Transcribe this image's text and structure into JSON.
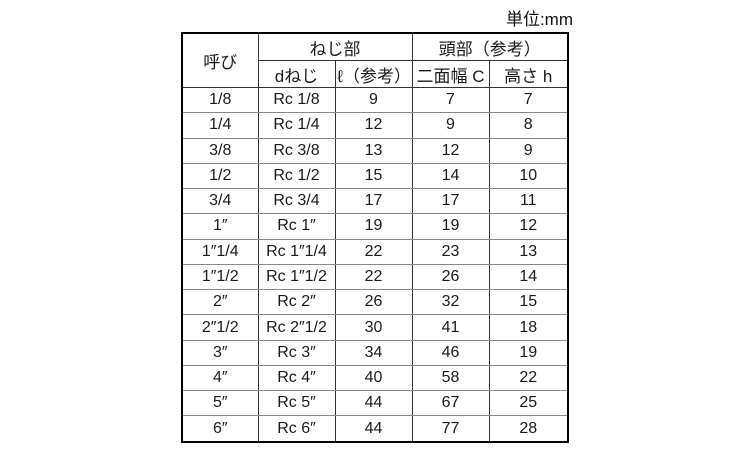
{
  "unit_label": "単位:mm",
  "table": {
    "header": {
      "col_nominal": "呼び",
      "group_thread": "ねじ部",
      "group_head": "頭部（参考）",
      "sub_d_thread": "dねじ",
      "sub_length_ref": "ℓ（参考）",
      "sub_width_across_flats": "二面幅 C",
      "sub_height": "高さ h"
    },
    "rows": [
      [
        "1/8",
        "Rc 1/8",
        "9",
        "7",
        "7"
      ],
      [
        "1/4",
        "Rc 1/4",
        "12",
        "9",
        "8"
      ],
      [
        "3/8",
        "Rc 3/8",
        "13",
        "12",
        "9"
      ],
      [
        "1/2",
        "Rc 1/2",
        "15",
        "14",
        "10"
      ],
      [
        "3/4",
        "Rc 3/4",
        "17",
        "17",
        "11"
      ],
      [
        "1″",
        "Rc 1″",
        "19",
        "19",
        "12"
      ],
      [
        "1″1/4",
        "Rc 1″1/4",
        "22",
        "23",
        "13"
      ],
      [
        "1″1/2",
        "Rc 1″1/2",
        "22",
        "26",
        "14"
      ],
      [
        "2″",
        "Rc 2″",
        "26",
        "32",
        "15"
      ],
      [
        "2″1/2",
        "Rc 2″1/2",
        "30",
        "41",
        "18"
      ],
      [
        "3″",
        "Rc 3″",
        "34",
        "46",
        "19"
      ],
      [
        "4″",
        "Rc 4″",
        "40",
        "58",
        "22"
      ],
      [
        "5″",
        "Rc 5″",
        "44",
        "67",
        "25"
      ],
      [
        "6″",
        "Rc 6″",
        "44",
        "77",
        "28"
      ]
    ]
  }
}
